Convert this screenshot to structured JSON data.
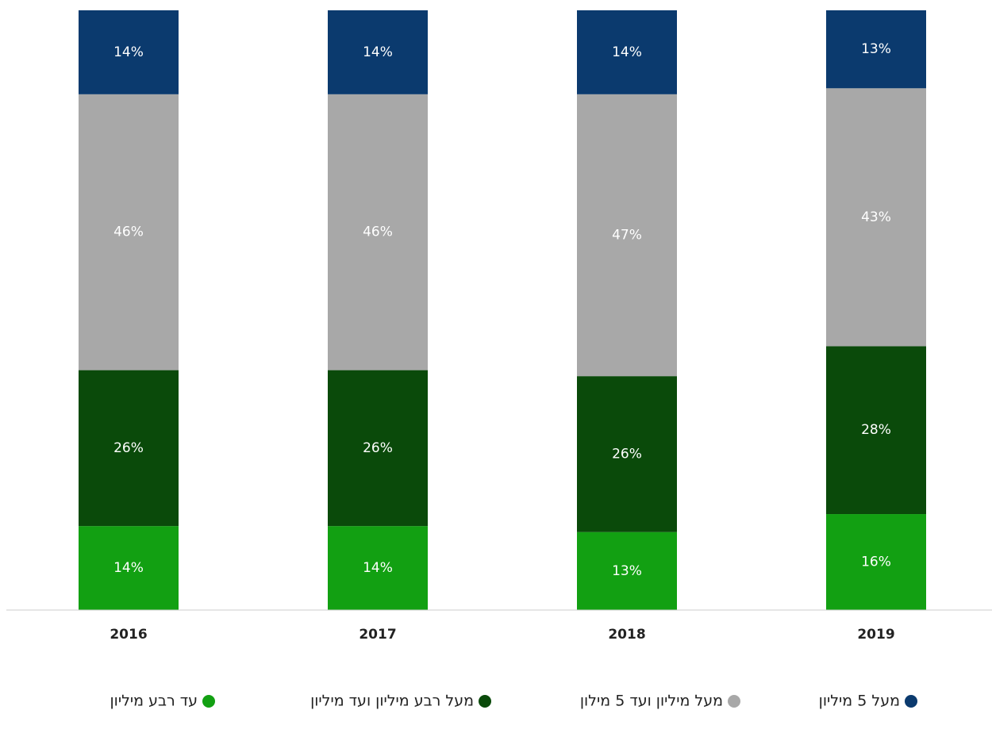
{
  "chart_data": {
    "type": "stacked_bar",
    "categories": [
      "2016",
      "2017",
      "2018",
      "2019"
    ],
    "series": [
      {
        "name": "עד רבע מיליון",
        "color": "#12a012",
        "values": [
          14,
          14,
          13,
          16
        ],
        "value_labels": [
          "14%",
          "14%",
          "13%",
          "16%"
        ]
      },
      {
        "name": "מעל רבע מיליון ועד מיליון",
        "color": "#0a4a0a",
        "values": [
          26,
          26,
          26,
          28
        ],
        "value_labels": [
          "26%",
          "26%",
          "26%",
          "28%"
        ]
      },
      {
        "name": "מעל מיליון ועד 5 מילון",
        "color": "#a8a8a8",
        "values": [
          46,
          46,
          47,
          43
        ],
        "value_labels": [
          "46%",
          "46%",
          "47%",
          "43%"
        ]
      },
      {
        "name": "מעל 5 מיליון",
        "color": "#0b3a6e",
        "values": [
          14,
          14,
          14,
          13
        ],
        "value_labels": [
          "14%",
          "14%",
          "14%",
          "13%"
        ]
      }
    ],
    "legend": "bottom"
  }
}
